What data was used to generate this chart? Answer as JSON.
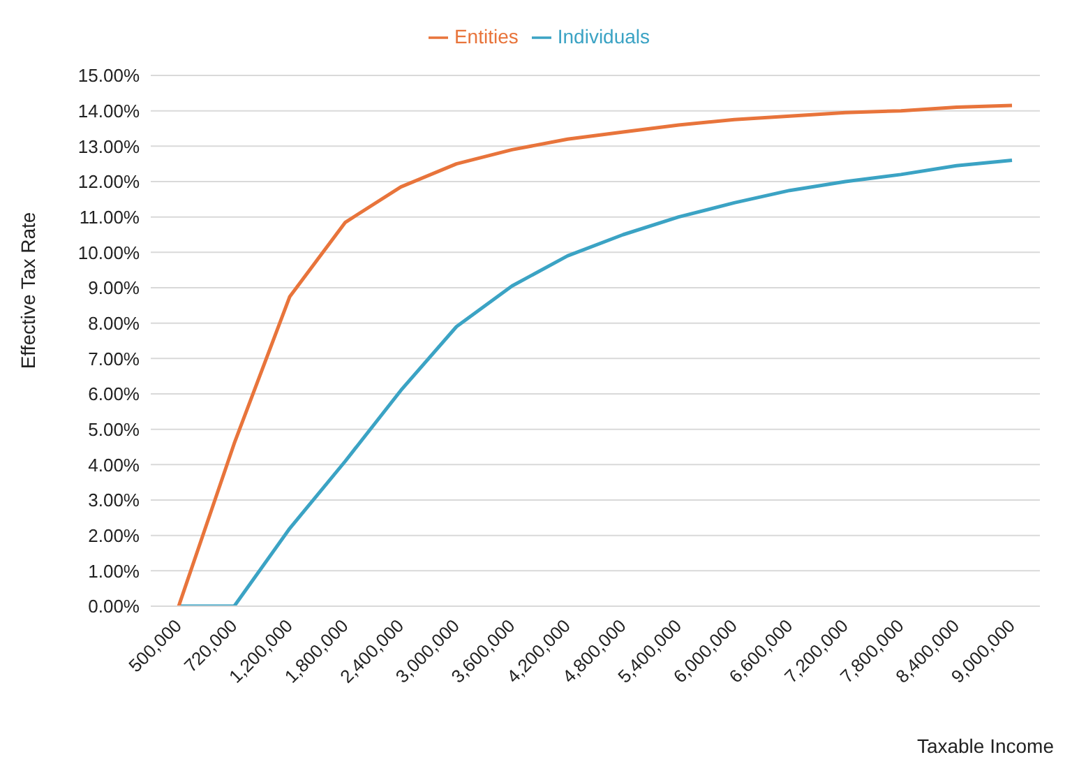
{
  "chart_data": {
    "type": "line",
    "xlabel": "Taxable Income",
    "ylabel": "Effective Tax Rate",
    "categories": [
      "500,000",
      "720,000",
      "1,200,000",
      "1,800,000",
      "2,400,000",
      "3,000,000",
      "3,600,000",
      "4,200,000",
      "4,800,000",
      "5,400,000",
      "6,000,000",
      "6,600,000",
      "7,200,000",
      "7,800,000",
      "8,400,000",
      "9,000,000"
    ],
    "series": [
      {
        "name": "Individuals",
        "color": "#3ba3c4",
        "values": [
          0,
          0,
          2.2,
          4.1,
          6.1,
          7.9,
          9.05,
          9.9,
          10.5,
          11.0,
          11.4,
          11.75,
          12.0,
          12.2,
          12.45,
          12.6
        ]
      },
      {
        "name": "Entities",
        "color": "#e8743b",
        "values": [
          0,
          4.6,
          8.75,
          10.85,
          11.85,
          12.5,
          12.9,
          13.2,
          13.4,
          13.6,
          13.75,
          13.85,
          13.95,
          14.0,
          14.1,
          14.15
        ]
      }
    ],
    "ylim": [
      0,
      15
    ],
    "yticks": [
      {
        "value": 0,
        "label": "0.00%"
      },
      {
        "value": 1,
        "label": "1.00%"
      },
      {
        "value": 2,
        "label": "2.00%"
      },
      {
        "value": 3,
        "label": "3.00%"
      },
      {
        "value": 4,
        "label": "4.00%"
      },
      {
        "value": 5,
        "label": "5.00%"
      },
      {
        "value": 6,
        "label": "6.00%"
      },
      {
        "value": 7,
        "label": "7.00%"
      },
      {
        "value": 8,
        "label": "8.00%"
      },
      {
        "value": 9,
        "label": "9.00%"
      },
      {
        "value": 10,
        "label": "10.00%"
      },
      {
        "value": 11,
        "label": "11.00%"
      },
      {
        "value": 12,
        "label": "12.00%"
      },
      {
        "value": 13,
        "label": "13.00%"
      },
      {
        "value": 14,
        "label": "14.00%"
      },
      {
        "value": 15,
        "label": "15.00%"
      }
    ],
    "grid": "y",
    "legend": "top",
    "marker": "none",
    "line_style": "solid"
  }
}
